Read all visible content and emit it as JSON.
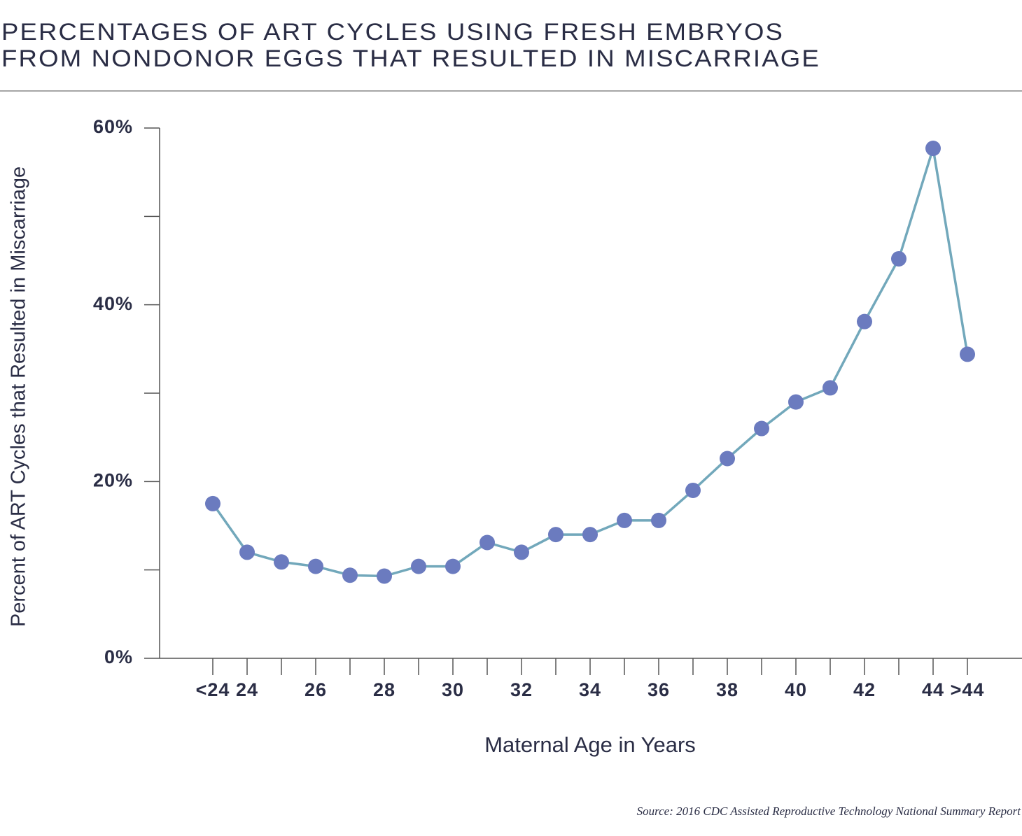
{
  "chart_data": {
    "type": "line",
    "title": [
      "PERCENTAGES OF ART CYCLES USING FRESH EMBRYOS",
      "FROM NONDONOR EGGS THAT RESULTED IN MISCARRIAGE"
    ],
    "x_label": "Maternal Age in Years",
    "y_label": "Percent of ART Cycles that Resulted in Miscarriage",
    "source": "Source: 2016 CDC Assisted Reproductive Technology National Summary Report",
    "categories": [
      "<24",
      "24",
      null,
      "26",
      null,
      "28",
      null,
      "30",
      null,
      "32",
      null,
      "34",
      null,
      "36",
      null,
      "38",
      null,
      "40",
      null,
      "42",
      null,
      "44",
      ">44"
    ],
    "series": [
      {
        "name": "Miscarriage",
        "line_color": "#72a8bb",
        "color": "#6b7bbf",
        "values": [
          17.5,
          12.0,
          10.9,
          10.4,
          9.4,
          9.3,
          10.4,
          10.4,
          13.1,
          12.0,
          14.0,
          14.0,
          15.6,
          15.6,
          19.0,
          22.6,
          26.0,
          29.0,
          30.6,
          38.1,
          45.2,
          57.7,
          34.4
        ]
      }
    ],
    "ylim": [
      0,
      60
    ],
    "yticks": [
      {
        "value": 0,
        "label": "0%"
      },
      10,
      {
        "value": 20,
        "label": "20%"
      },
      30,
      {
        "value": 40,
        "label": "40%"
      },
      50,
      {
        "value": 60,
        "label": "60%"
      }
    ]
  }
}
